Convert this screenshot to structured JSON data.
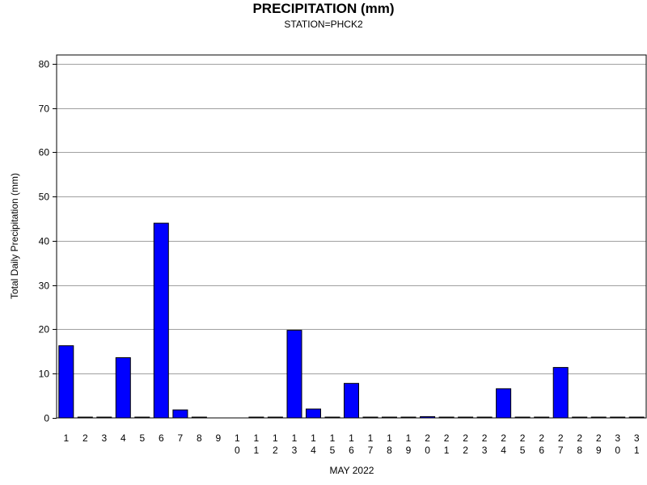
{
  "chart_data": {
    "type": "bar",
    "title": "PRECIPITATION (mm)",
    "subtitle": "STATION=PHCK2",
    "xlabel": "MAY 2022",
    "ylabel": "Total Daily Precipitation (mm)",
    "ylim": [
      0,
      82
    ],
    "yticks": [
      0,
      10,
      20,
      30,
      40,
      50,
      60,
      70,
      80
    ],
    "grid": true,
    "categories": [
      "1",
      "2",
      "3",
      "4",
      "5",
      "6",
      "7",
      "8",
      "9",
      "10",
      "11",
      "12",
      "13",
      "14",
      "15",
      "16",
      "17",
      "18",
      "19",
      "20",
      "21",
      "22",
      "23",
      "24",
      "25",
      "26",
      "27",
      "28",
      "29",
      "30",
      "31"
    ],
    "values": [
      16.3,
      0,
      0,
      13.6,
      0,
      44.0,
      1.8,
      0,
      null,
      null,
      0,
      0,
      19.8,
      2.0,
      0,
      7.8,
      0,
      0,
      0,
      0.3,
      0,
      0,
      0,
      6.6,
      0,
      0,
      11.4,
      0,
      0,
      0,
      0
    ],
    "colors": {
      "bar": "#0000ff",
      "bar_edge": "#000000",
      "grid": "#a0a0a0"
    }
  }
}
